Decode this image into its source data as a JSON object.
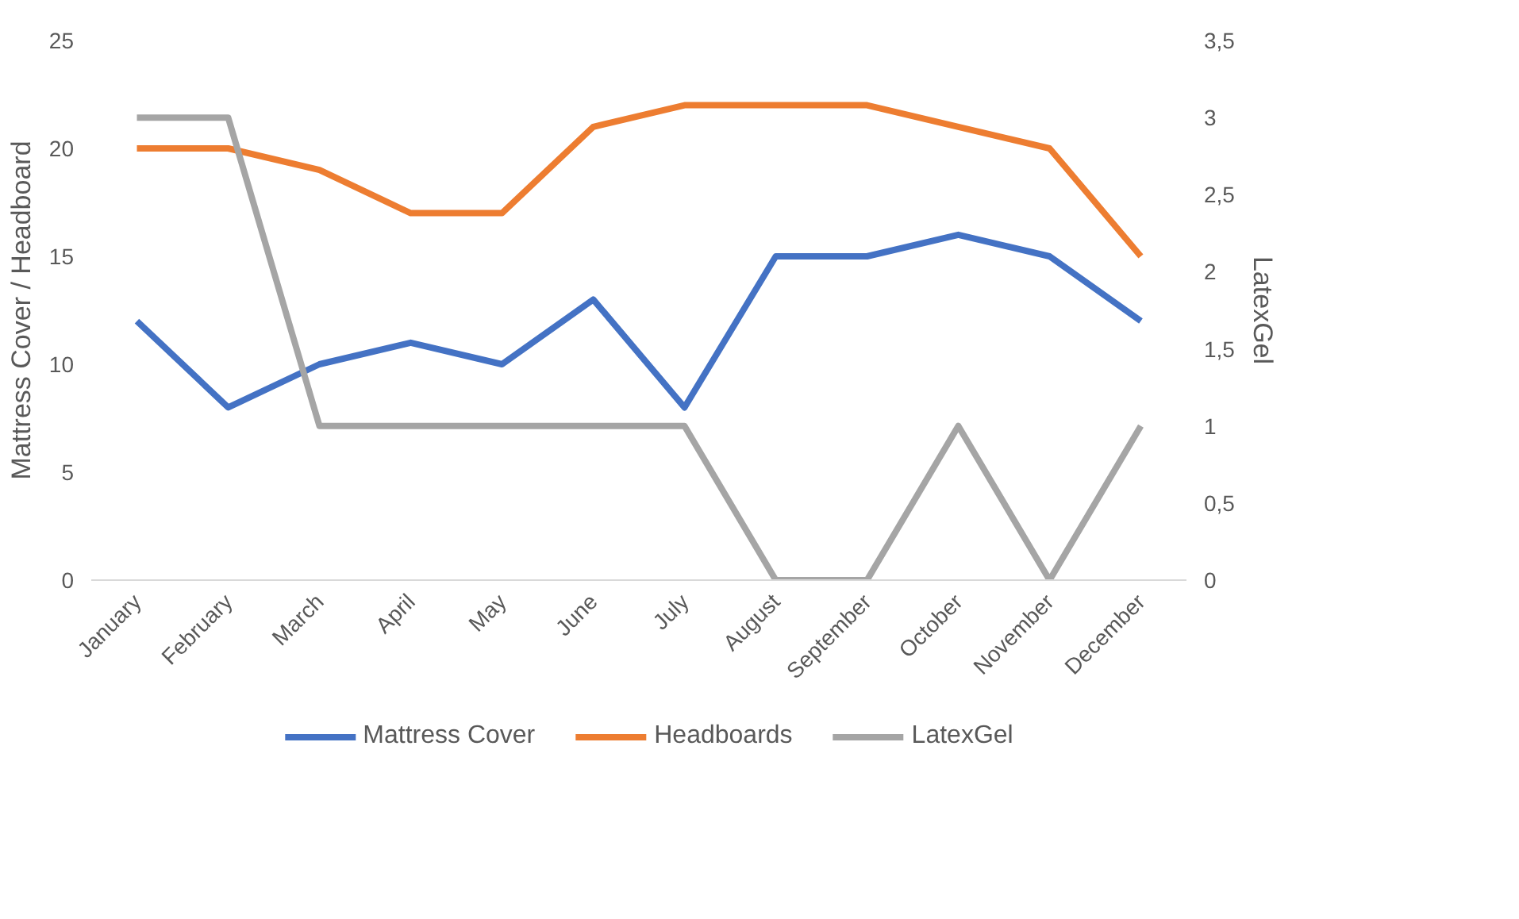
{
  "chart_data": {
    "type": "line",
    "categories": [
      "January",
      "February",
      "March",
      "April",
      "May",
      "June",
      "July",
      "August",
      "September",
      "October",
      "November",
      "December"
    ],
    "ylabel": "Mattress Cover / Headboard",
    "y2label": "LatexGel",
    "ylim": [
      0,
      25
    ],
    "yticks": [
      0,
      5,
      10,
      15,
      20,
      25
    ],
    "y2lim": [
      0,
      3.5
    ],
    "y2ticks": [
      0,
      {
        "value": 0.5,
        "label": "0,5"
      },
      1,
      {
        "value": 1.5,
        "label": "1,5"
      },
      2,
      {
        "value": 2.5,
        "label": "2,5"
      },
      3,
      {
        "value": 3.5,
        "label": "3,5"
      }
    ],
    "series": [
      {
        "name": "Mattress Cover",
        "color": "#4472c4",
        "values": [
          12,
          8,
          10,
          11,
          10,
          13,
          8,
          15,
          15,
          16,
          15,
          12
        ]
      },
      {
        "name": "Headboards",
        "color": "#ed7d31",
        "values": [
          20,
          20,
          19,
          17,
          17,
          21,
          22,
          22,
          22,
          21,
          20,
          15
        ]
      },
      {
        "name": "LatexGel",
        "color": "#a5a5a5",
        "axis": "y2",
        "values": [
          3,
          3,
          1,
          1,
          1,
          1,
          1,
          0,
          0,
          1,
          0,
          1
        ]
      }
    ],
    "legend": "bottom",
    "grid": false,
    "marker": "none",
    "line_style": "solid"
  }
}
